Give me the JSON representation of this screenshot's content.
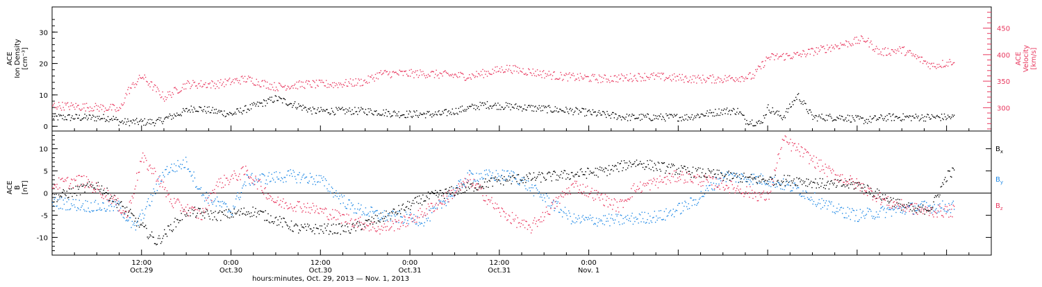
{
  "chart_data": [
    {
      "type": "scatter",
      "panel": "top",
      "ylabel_left": [
        "ACE",
        "Ion Density",
        "[cm⁻³]"
      ],
      "ylabel_right": [
        "ACE",
        "Velocity",
        "[km/s]"
      ],
      "ylim_left": [
        -1.5,
        38
      ],
      "ylim_right": [
        256,
        490
      ],
      "y_ticks_left": [
        "0",
        "10",
        "20",
        "30"
      ],
      "y_ticks_right": [
        "300",
        "350",
        "400",
        "450"
      ],
      "colors": {
        "density": "#000000",
        "velocity": "#e8365d"
      },
      "series": [
        {
          "axis": "left",
          "color": "#000000",
          "hours": [
            0,
            8,
            9,
            14,
            19,
            24,
            30,
            35,
            42,
            47,
            52,
            58,
            64,
            70,
            77,
            85,
            90,
            92,
            93,
            95,
            96,
            98,
            100,
            102,
            106,
            109,
            112,
            121
          ],
          "values": [
            3,
            2.8,
            1.5,
            1.5,
            6,
            4,
            9,
            5,
            5,
            4,
            4,
            7,
            6,
            5,
            3,
            3,
            5,
            5,
            2,
            1,
            6,
            3,
            10,
            3,
            3,
            2,
            3,
            3
          ]
        },
        {
          "axis": "right",
          "color": "#e8365d",
          "hours": [
            0,
            8,
            9,
            10,
            12,
            15,
            18,
            22,
            26,
            30,
            34,
            38,
            42,
            44,
            50,
            56,
            61,
            68,
            74,
            80,
            86,
            90,
            94,
            96,
            100,
            106,
            109,
            111,
            114,
            118,
            120,
            121
          ],
          "values": [
            305,
            300,
            295,
            330,
            360,
            320,
            345,
            345,
            355,
            340,
            345,
            345,
            350,
            365,
            365,
            360,
            375,
            360,
            355,
            360,
            355,
            355,
            360,
            395,
            400,
            420,
            430,
            405,
            410,
            380,
            385,
            390
          ]
        }
      ]
    },
    {
      "type": "scatter",
      "panel": "bottom",
      "ylabel_left": [
        "ACE",
        "B",
        "[nT]"
      ],
      "ylim": [
        -14,
        14
      ],
      "y_ticks": [
        "-10",
        "-5",
        "0",
        "5",
        "10"
      ],
      "legend": [
        "B",
        "B",
        "B"
      ],
      "legend_subscripts": [
        "x",
        "y",
        "z"
      ],
      "legend_placement": "right",
      "colors": {
        "Bx": "#000000",
        "By": "#1e88e5",
        "Bz": "#e8365d"
      },
      "series": [
        {
          "name": "Bx",
          "color": "#000000",
          "hours": [
            0,
            6,
            8,
            10,
            14,
            18,
            22,
            27,
            33,
            40,
            45,
            50,
            60,
            68,
            74,
            78,
            85,
            90,
            95,
            100,
            104,
            108,
            113,
            116,
            118,
            120,
            121
          ],
          "values": [
            -1,
            2,
            -1,
            -4,
            -11,
            -4,
            -5,
            -4,
            -8,
            -8,
            -5,
            -1,
            3,
            4,
            5,
            7,
            5,
            4,
            3,
            3,
            2,
            2,
            -2,
            -4,
            -3,
            4,
            5
          ]
        },
        {
          "name": "By",
          "color": "#1e88e5",
          "hours": [
            0,
            6,
            9,
            11,
            13,
            15,
            18,
            20,
            24,
            26,
            32,
            36,
            40,
            44,
            50,
            56,
            62,
            70,
            76,
            82,
            86,
            90,
            96,
            100,
            104,
            108,
            112,
            117,
            121
          ],
          "values": [
            -2,
            -3,
            -3,
            -8,
            -2,
            5,
            7,
            0,
            -4,
            3,
            4,
            3,
            -3,
            -5,
            -6,
            4,
            4,
            -6,
            -6,
            -5,
            -2,
            4,
            3,
            1,
            -3,
            -5,
            -4,
            -3,
            -3
          ]
        },
        {
          "name": "Bz",
          "color": "#e8365d",
          "hours": [
            0,
            4,
            8,
            10,
            12,
            14,
            16,
            20,
            22,
            26,
            30,
            34,
            40,
            44,
            48,
            52,
            56,
            60,
            64,
            70,
            76,
            78,
            84,
            90,
            96,
            98,
            100,
            104,
            108,
            112,
            117,
            121
          ],
          "values": [
            2,
            3,
            -1,
            -5,
            8,
            4,
            -2,
            -5,
            2,
            5,
            -2,
            -3,
            -6,
            -8,
            -6,
            -2,
            3,
            -4,
            -8,
            2,
            -3,
            1,
            4,
            2,
            -1,
            12,
            10,
            5,
            2,
            -2,
            -4,
            -4
          ]
        }
      ]
    }
  ],
  "x_axis": {
    "tick_labels": [
      {
        "hour": 12,
        "time": "12:00",
        "date": "Oct.29"
      },
      {
        "hour": 24,
        "time": "0:00",
        "date": "Oct.30"
      },
      {
        "hour": 36,
        "time": "12:00",
        "date": "Oct.30"
      },
      {
        "hour": 48,
        "time": "0:00",
        "date": "Oct.31"
      },
      {
        "hour": 60,
        "time": "12:00",
        "date": "Oct.31"
      },
      {
        "hour": 72,
        "time": "0:00",
        "date": "Nov. 1"
      }
    ],
    "xlabel": "hours:minutes, Oct. 29, 2013 — Nov.  1, 2013"
  }
}
